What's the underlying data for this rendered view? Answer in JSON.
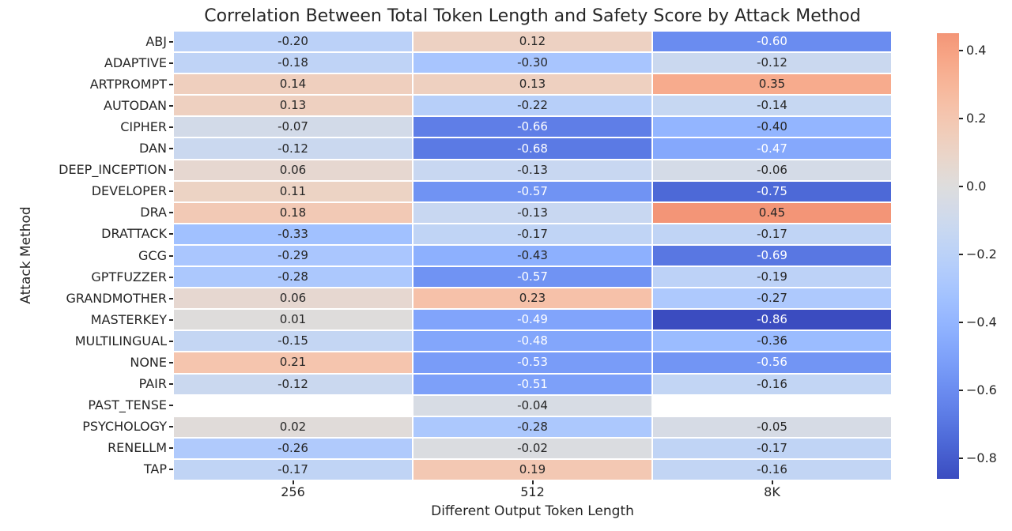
{
  "chart_data": {
    "type": "heatmap",
    "title": "Correlation Between Total Token Length and Safety Score by Attack Method",
    "xlabel": "Different Output Token Length",
    "ylabel": "Attack Method",
    "columns": [
      "256",
      "512",
      "8K"
    ],
    "rows": [
      "ABJ",
      "ADAPTIVE",
      "ARTPROMPT",
      "AUTODAN",
      "CIPHER",
      "DAN",
      "DEEP_INCEPTION",
      "DEVELOPER",
      "DRA",
      "DRATTACK",
      "GCG",
      "GPTFUZZER",
      "GRANDMOTHER",
      "MASTERKEY",
      "MULTILINGUAL",
      "NONE",
      "PAIR",
      "PAST_TENSE",
      "PSYCHOLOGY",
      "RENELLM",
      "TAP"
    ],
    "values": [
      [
        -0.2,
        0.12,
        -0.6
      ],
      [
        -0.18,
        -0.3,
        -0.12
      ],
      [
        0.14,
        0.13,
        0.35
      ],
      [
        0.13,
        -0.22,
        -0.14
      ],
      [
        -0.07,
        -0.66,
        -0.4
      ],
      [
        -0.12,
        -0.68,
        -0.47
      ],
      [
        0.06,
        -0.13,
        -0.06
      ],
      [
        0.11,
        -0.57,
        -0.75
      ],
      [
        0.18,
        -0.13,
        0.45
      ],
      [
        -0.33,
        -0.17,
        -0.17
      ],
      [
        -0.29,
        -0.43,
        -0.69
      ],
      [
        -0.28,
        -0.57,
        -0.19
      ],
      [
        0.06,
        0.23,
        -0.27
      ],
      [
        0.01,
        -0.49,
        -0.86
      ],
      [
        -0.15,
        -0.48,
        -0.36
      ],
      [
        0.21,
        -0.53,
        -0.56
      ],
      [
        -0.12,
        -0.51,
        -0.16
      ],
      [
        null,
        -0.04,
        null
      ],
      [
        0.02,
        -0.28,
        -0.05
      ],
      [
        -0.26,
        -0.02,
        -0.17
      ],
      [
        -0.17,
        0.19,
        -0.16
      ]
    ],
    "colormap": "coolwarm",
    "center": 0,
    "vmin": -0.86,
    "vmax": 0.45,
    "colorbar_ticks": [
      0.4,
      0.2,
      0.0,
      -0.2,
      -0.4,
      -0.6,
      -0.8
    ],
    "colorbar_position": "right",
    "grid": "white-cell-separators"
  },
  "colors": {
    "text": "#262626",
    "background": "#ffffff",
    "nan_cell": "#ffffff",
    "colormap_low": "#3b4cc0",
    "colormap_mid": "#dddddd",
    "colormap_high": "#b40426",
    "annot_dark": "#262626",
    "annot_light": "#ffffff"
  }
}
